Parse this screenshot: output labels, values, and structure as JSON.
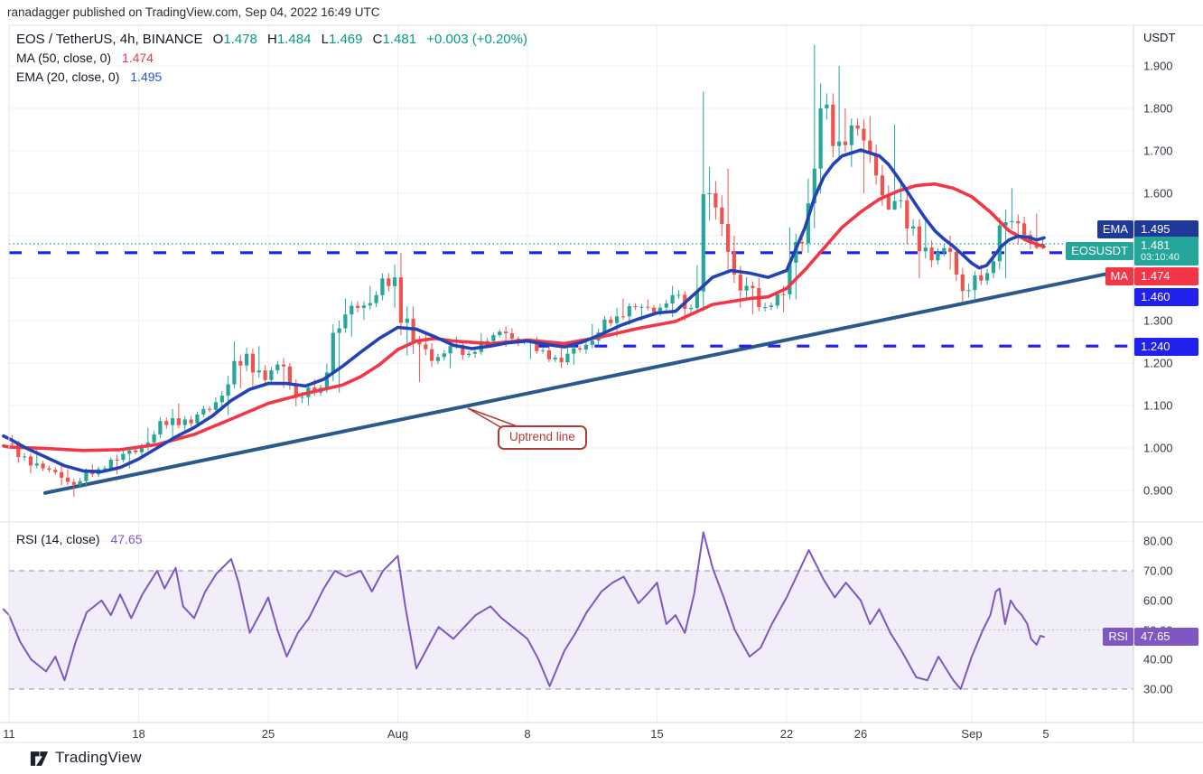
{
  "published_bar": {
    "text": "ranadagger published on TradingView.com, Sep 04, 2022 16:49 UTC"
  },
  "header": {
    "symbol": "EOS / TetherUS, 4h, BINANCE",
    "o_label": "O",
    "o": "1.478",
    "h_label": "H",
    "h": "1.484",
    "l_label": "L",
    "l": "1.469",
    "c_label": "C",
    "c": "1.481",
    "change": "+0.003 (+0.20%)",
    "ma_label": "MA (50, close, 0)",
    "ma_value": "1.474",
    "ema_label": "EMA (20, close, 0)",
    "ema_value": "1.495"
  },
  "rsi_header": {
    "label": "RSI (14, close)",
    "value": "47.65"
  },
  "axis": {
    "unit": "USDT",
    "price_ticks": [
      1.9,
      1.8,
      1.7,
      1.6,
      1.3,
      1.2,
      1.1,
      1.0,
      0.9
    ],
    "rsi_ticks": [
      80.0,
      70.0,
      60.0,
      50.0,
      40.0,
      30.0
    ],
    "time_labels": [
      {
        "text": "11",
        "day": 0
      },
      {
        "text": "18",
        "day": 7
      },
      {
        "text": "25",
        "day": 14
      },
      {
        "text": "Aug",
        "day": 21
      },
      {
        "text": "8",
        "day": 28
      },
      {
        "text": "15",
        "day": 35
      },
      {
        "text": "22",
        "day": 42
      },
      {
        "text": "26",
        "day": 46
      },
      {
        "text": "Sep",
        "day": 52
      },
      {
        "text": "5",
        "day": 56
      }
    ]
  },
  "tags": {
    "ema": "EMA",
    "ema_value": "1.495",
    "symbol": "EOSUSDT",
    "last_price": "1.481",
    "countdown": "03:10:40",
    "ma": "MA",
    "ma_value": "1.474",
    "level1": "1.460",
    "level2": "1.240",
    "rsi": "RSI",
    "rsi_value": "47.65"
  },
  "annotation": {
    "uptrend": "Uptrend line"
  },
  "footer": {
    "brand": "TradingView"
  },
  "colors": {
    "up": "#26a69a",
    "down": "#ef5350",
    "ma": "#f23645",
    "ema": "#2343b5",
    "level": "#2021ee",
    "trend": "#2a5a8c",
    "rsi": "#7e57c2",
    "rsi_band": "rgba(126,87,194,0.10)",
    "last_price_line": "#26a69a",
    "grid": "#edf0f6",
    "frame": "#e0e3eb",
    "band_dash": "#8e94a2",
    "mid_dash": "#b9bdc9",
    "ema_tag_bg": "#21389b",
    "price_tag_bg": "#26a69a",
    "ma_tag_bg": "#f23645",
    "level_tag_bg": "#2021ee",
    "rsi_tag_bg": "#7e57c2"
  },
  "chart_data": {
    "type": "candlestick",
    "symbol": "EOSUSDT",
    "exchange": "BINANCE",
    "interval": "4h",
    "title": "EOS / TetherUS, 4h, BINANCE",
    "start_date": "2022-07-11",
    "price_axis_range": [
      0.87,
      1.97
    ],
    "rsi_axis_range": [
      22,
      87
    ],
    "last_price": 1.481,
    "levels": [
      1.46,
      1.24
    ],
    "level2_start_day": 28.5,
    "trendline": {
      "from_day": 1.95,
      "from_price": 0.894,
      "to_day": 60.5,
      "to_price": 1.421
    },
    "rsi_band": [
      30,
      70
    ],
    "daily_candles": {
      "note": "one entry per day from 2022-07-11 to 2022-09-04, [open,high,low,close] in USDT",
      "ohlc": [
        [
          1.01,
          1.03,
          0.965,
          0.98
        ],
        [
          0.98,
          0.995,
          0.94,
          0.952
        ],
        [
          0.952,
          0.965,
          0.912,
          0.93
        ],
        [
          0.93,
          0.95,
          0.885,
          0.922
        ],
        [
          0.922,
          0.962,
          0.908,
          0.95
        ],
        [
          0.95,
          0.985,
          0.938,
          0.972
        ],
        [
          0.972,
          1.0,
          0.952,
          0.99
        ],
        [
          0.99,
          1.048,
          0.982,
          1.032
        ],
        [
          1.032,
          1.092,
          1.02,
          1.07
        ],
        [
          1.07,
          1.105,
          1.038,
          1.058
        ],
        [
          1.058,
          1.1,
          1.048,
          1.09
        ],
        [
          1.09,
          1.17,
          1.078,
          1.15
        ],
        [
          1.15,
          1.252,
          1.14,
          1.222
        ],
        [
          1.222,
          1.24,
          1.138,
          1.16
        ],
        [
          1.16,
          1.212,
          1.142,
          1.192
        ],
        [
          1.192,
          1.2,
          1.098,
          1.12
        ],
        [
          1.12,
          1.162,
          1.1,
          1.142
        ],
        [
          1.142,
          1.3,
          1.13,
          1.282
        ],
        [
          1.282,
          1.352,
          1.262,
          1.33
        ],
        [
          1.33,
          1.382,
          1.302,
          1.36
        ],
        [
          1.36,
          1.432,
          1.33,
          1.402
        ],
        [
          1.402,
          1.46,
          1.218,
          1.25
        ],
        [
          1.25,
          1.272,
          1.155,
          1.205
        ],
        [
          1.205,
          1.252,
          1.188,
          1.24
        ],
        [
          1.24,
          1.262,
          1.208,
          1.222
        ],
        [
          1.222,
          1.27,
          1.212,
          1.252
        ],
        [
          1.252,
          1.286,
          1.238,
          1.27
        ],
        [
          1.27,
          1.282,
          1.24,
          1.252
        ],
        [
          1.252,
          1.262,
          1.21,
          1.23
        ],
        [
          1.23,
          1.242,
          1.188,
          1.202
        ],
        [
          1.202,
          1.252,
          1.196,
          1.232
        ],
        [
          1.232,
          1.292,
          1.222,
          1.272
        ],
        [
          1.272,
          1.33,
          1.262,
          1.31
        ],
        [
          1.31,
          1.352,
          1.29,
          1.332
        ],
        [
          1.332,
          1.35,
          1.3,
          1.32
        ],
        [
          1.32,
          1.382,
          1.308,
          1.36
        ],
        [
          1.36,
          1.372,
          1.3,
          1.33
        ],
        [
          1.33,
          1.84,
          1.322,
          1.6
        ],
        [
          1.6,
          1.658,
          1.42,
          1.462
        ],
        [
          1.462,
          1.5,
          1.33,
          1.382
        ],
        [
          1.382,
          1.4,
          1.315,
          1.332
        ],
        [
          1.332,
          1.382,
          1.32,
          1.362
        ],
        [
          1.362,
          1.52,
          1.35,
          1.482
        ],
        [
          1.482,
          1.95,
          1.46,
          1.8
        ],
        [
          1.8,
          1.9,
          1.68,
          1.722
        ],
        [
          1.722,
          1.8,
          1.662,
          1.752
        ],
        [
          1.752,
          1.782,
          1.6,
          1.642
        ],
        [
          1.642,
          1.762,
          1.56,
          1.582
        ],
        [
          1.582,
          1.622,
          1.48,
          1.522
        ],
        [
          1.522,
          1.542,
          1.4,
          1.442
        ],
        [
          1.442,
          1.5,
          1.42,
          1.462
        ],
        [
          1.462,
          1.472,
          1.345,
          1.372
        ],
        [
          1.372,
          1.432,
          1.35,
          1.412
        ],
        [
          1.412,
          1.562,
          1.4,
          1.532
        ],
        [
          1.532,
          1.612,
          1.48,
          1.502
        ],
        [
          1.502,
          1.552,
          1.468,
          1.481
        ]
      ]
    },
    "ma50": [
      [
        -0.3,
        1.005
      ],
      [
        0,
        1.002
      ],
      [
        2,
        0.999
      ],
      [
        4,
        0.994
      ],
      [
        6,
        0.996
      ],
      [
        8,
        1.008
      ],
      [
        10,
        1.032
      ],
      [
        12,
        1.068
      ],
      [
        14,
        1.105
      ],
      [
        16,
        1.128
      ],
      [
        18,
        1.148
      ],
      [
        19,
        1.168
      ],
      [
        20,
        1.196
      ],
      [
        21,
        1.232
      ],
      [
        22,
        1.252
      ],
      [
        23,
        1.258
      ],
      [
        24,
        1.252
      ],
      [
        26,
        1.246
      ],
      [
        28,
        1.254
      ],
      [
        30,
        1.246
      ],
      [
        32,
        1.262
      ],
      [
        34,
        1.282
      ],
      [
        36,
        1.298
      ],
      [
        38,
        1.338
      ],
      [
        40,
        1.352
      ],
      [
        41,
        1.356
      ],
      [
        42,
        1.376
      ],
      [
        43,
        1.42
      ],
      [
        44,
        1.47
      ],
      [
        45,
        1.52
      ],
      [
        46,
        1.556
      ],
      [
        47,
        1.586
      ],
      [
        48,
        1.605
      ],
      [
        49,
        1.618
      ],
      [
        50,
        1.622
      ],
      [
        51,
        1.612
      ],
      [
        52,
        1.592
      ],
      [
        53,
        1.556
      ],
      [
        54,
        1.512
      ],
      [
        55,
        1.488
      ],
      [
        55.9,
        1.474
      ]
    ],
    "ema20": [
      [
        -0.3,
        1.028
      ],
      [
        0,
        1.022
      ],
      [
        1,
        0.998
      ],
      [
        2,
        0.978
      ],
      [
        3,
        0.958
      ],
      [
        4,
        0.946
      ],
      [
        5,
        0.944
      ],
      [
        6,
        0.954
      ],
      [
        7,
        0.974
      ],
      [
        8,
        1.0
      ],
      [
        9,
        1.026
      ],
      [
        10,
        1.048
      ],
      [
        11,
        1.076
      ],
      [
        12,
        1.112
      ],
      [
        13,
        1.138
      ],
      [
        14,
        1.152
      ],
      [
        15,
        1.152
      ],
      [
        16,
        1.146
      ],
      [
        17,
        1.162
      ],
      [
        18,
        1.192
      ],
      [
        19,
        1.226
      ],
      [
        20,
        1.258
      ],
      [
        21,
        1.284
      ],
      [
        22,
        1.28
      ],
      [
        23,
        1.262
      ],
      [
        24,
        1.242
      ],
      [
        25,
        1.234
      ],
      [
        26,
        1.24
      ],
      [
        27,
        1.248
      ],
      [
        28,
        1.252
      ],
      [
        29,
        1.244
      ],
      [
        30,
        1.238
      ],
      [
        31,
        1.25
      ],
      [
        32,
        1.268
      ],
      [
        33,
        1.288
      ],
      [
        34,
        1.304
      ],
      [
        35,
        1.318
      ],
      [
        36,
        1.322
      ],
      [
        37,
        1.362
      ],
      [
        38,
        1.402
      ],
      [
        39,
        1.418
      ],
      [
        40,
        1.412
      ],
      [
        41,
        1.402
      ],
      [
        42,
        1.418
      ],
      [
        43,
        1.52
      ],
      [
        43.5,
        1.59
      ],
      [
        44,
        1.638
      ],
      [
        44.5,
        1.668
      ],
      [
        45,
        1.688
      ],
      [
        46,
        1.702
      ],
      [
        47,
        1.688
      ],
      [
        47.5,
        1.668
      ],
      [
        48,
        1.638
      ],
      [
        48.5,
        1.605
      ],
      [
        49,
        1.572
      ],
      [
        49.5,
        1.54
      ],
      [
        50,
        1.512
      ],
      [
        50.5,
        1.492
      ],
      [
        51,
        1.475
      ],
      [
        51.5,
        1.455
      ],
      [
        52,
        1.435
      ],
      [
        52.4,
        1.424
      ],
      [
        52.8,
        1.43
      ],
      [
        53.2,
        1.452
      ],
      [
        53.6,
        1.475
      ],
      [
        54,
        1.49
      ],
      [
        54.5,
        1.499
      ],
      [
        55,
        1.497
      ],
      [
        55.5,
        1.49
      ],
      [
        55.9,
        1.495
      ]
    ],
    "rsi14": [
      [
        -0.3,
        57
      ],
      [
        0,
        55
      ],
      [
        0.6,
        46
      ],
      [
        1.2,
        40
      ],
      [
        2,
        36
      ],
      [
        2.5,
        41
      ],
      [
        3,
        33
      ],
      [
        3.6,
        46
      ],
      [
        4.2,
        56
      ],
      [
        5,
        60
      ],
      [
        5.5,
        55
      ],
      [
        6,
        62
      ],
      [
        6.6,
        54
      ],
      [
        7.2,
        62
      ],
      [
        8,
        70
      ],
      [
        8.4,
        64
      ],
      [
        9,
        71
      ],
      [
        9.4,
        58
      ],
      [
        10,
        54
      ],
      [
        10.6,
        63
      ],
      [
        11.2,
        69
      ],
      [
        12,
        74
      ],
      [
        12.4,
        66
      ],
      [
        13,
        49
      ],
      [
        13.6,
        56
      ],
      [
        14,
        61
      ],
      [
        14.5,
        50
      ],
      [
        15,
        41
      ],
      [
        15.6,
        49
      ],
      [
        16.2,
        54
      ],
      [
        17,
        64
      ],
      [
        17.6,
        70
      ],
      [
        18.2,
        68
      ],
      [
        19,
        70
      ],
      [
        19.6,
        63
      ],
      [
        20.2,
        70
      ],
      [
        21,
        75
      ],
      [
        21.4,
        58
      ],
      [
        22,
        37
      ],
      [
        22.6,
        44
      ],
      [
        23.2,
        51
      ],
      [
        24,
        47
      ],
      [
        24.6,
        51
      ],
      [
        25.2,
        55
      ],
      [
        26,
        58
      ],
      [
        26.6,
        54
      ],
      [
        27.2,
        51
      ],
      [
        28,
        47
      ],
      [
        28.6,
        40
      ],
      [
        29.2,
        31
      ],
      [
        30,
        43
      ],
      [
        30.6,
        49
      ],
      [
        31.2,
        56
      ],
      [
        32,
        63
      ],
      [
        32.6,
        66
      ],
      [
        33.2,
        68
      ],
      [
        34,
        59
      ],
      [
        34.6,
        63
      ],
      [
        35,
        66
      ],
      [
        35.5,
        52
      ],
      [
        36,
        55
      ],
      [
        36.5,
        49
      ],
      [
        37,
        62
      ],
      [
        37.5,
        83
      ],
      [
        38,
        71
      ],
      [
        38.6,
        61
      ],
      [
        39.2,
        50
      ],
      [
        40,
        41
      ],
      [
        40.6,
        44
      ],
      [
        41.2,
        52
      ],
      [
        42,
        61
      ],
      [
        42.6,
        69
      ],
      [
        43.2,
        77
      ],
      [
        44,
        67
      ],
      [
        44.6,
        61
      ],
      [
        45.2,
        66
      ],
      [
        46,
        60
      ],
      [
        46.5,
        52
      ],
      [
        47,
        57
      ],
      [
        47.6,
        49
      ],
      [
        48.2,
        43
      ],
      [
        49,
        34
      ],
      [
        49.6,
        33
      ],
      [
        50.2,
        41
      ],
      [
        51,
        33
      ],
      [
        51.4,
        30
      ],
      [
        52,
        41
      ],
      [
        52.6,
        50
      ],
      [
        53,
        55
      ],
      [
        53.3,
        63
      ],
      [
        53.5,
        64
      ],
      [
        53.8,
        52
      ],
      [
        54.1,
        60
      ],
      [
        54.4,
        57
      ],
      [
        54.7,
        55
      ],
      [
        55,
        52
      ],
      [
        55.2,
        47
      ],
      [
        55.5,
        45
      ],
      [
        55.7,
        48
      ],
      [
        55.9,
        47.65
      ]
    ]
  }
}
